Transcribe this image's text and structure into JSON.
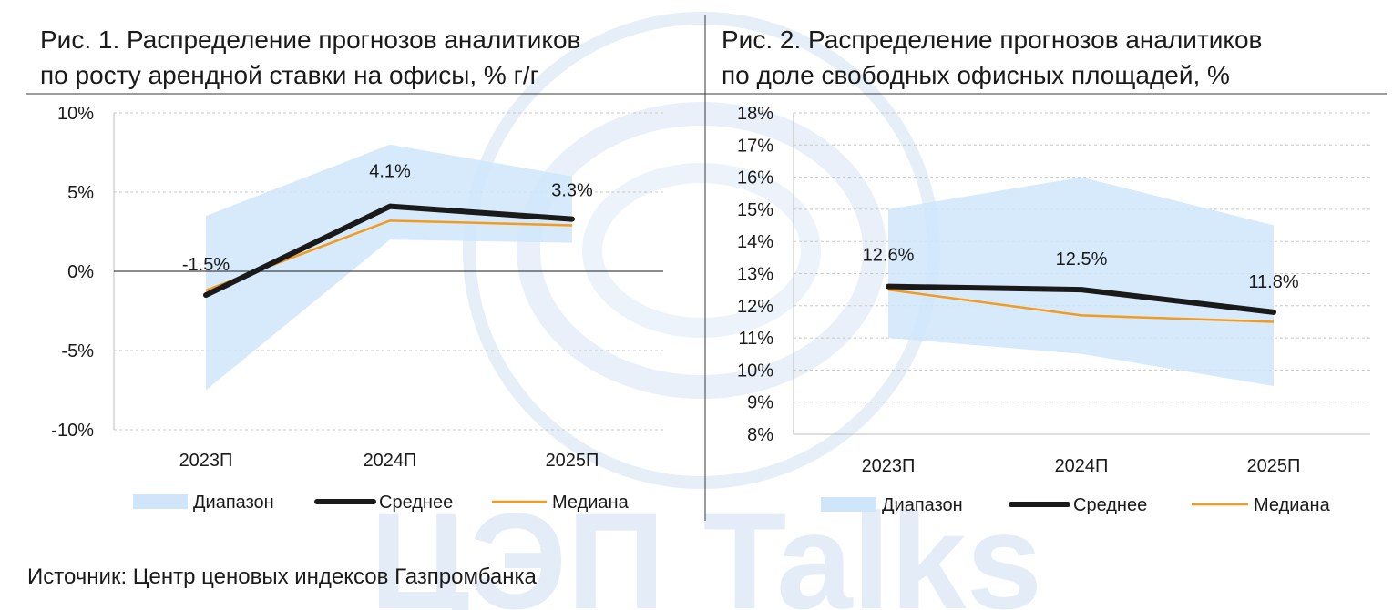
{
  "figures": [
    {
      "title_line1": "Рис. 1.  Распределение прогнозов аналитиков",
      "title_line2": "по росту арендной ставки на офисы, % г/г"
    },
    {
      "title_line1": "Рис. 2.  Распределение прогнозов аналитиков",
      "title_line2": "по доле свободных офисных площадей, %"
    }
  ],
  "source": "Источник: Центр ценовых индексов Газпромбанка",
  "watermark": "ЦЭП Talks",
  "colors": {
    "range": "#cfe6fa",
    "mean": "#1a1a1a",
    "median": "#f39a20",
    "grid": "#c8c8c8",
    "watermark": "#e3ecf7"
  },
  "chart_data": [
    {
      "type": "area",
      "categories": [
        "2023П",
        "2024П",
        "2025П"
      ],
      "ylim": [
        -10,
        10
      ],
      "yticks": [
        10,
        5,
        0,
        -5,
        -10
      ],
      "ytick_labels": [
        "10%",
        "5%",
        "0%",
        "-5%",
        "-10%"
      ],
      "grid": true,
      "legend_position": "bottom",
      "series": [
        {
          "name": "Диапазон",
          "type": "range",
          "low": [
            -7.5,
            2.0,
            1.8
          ],
          "high": [
            3.5,
            8.0,
            6.0
          ]
        },
        {
          "name": "Среднее",
          "type": "line",
          "values": [
            -1.5,
            4.1,
            3.3
          ]
        },
        {
          "name": "Медиана",
          "type": "line",
          "values": [
            -1.2,
            3.2,
            2.9
          ]
        }
      ],
      "data_labels": [
        "-1.5%",
        "4.1%",
        "3.3%"
      ]
    },
    {
      "type": "area",
      "categories": [
        "2023П",
        "2024П",
        "2025П"
      ],
      "ylim": [
        8,
        18
      ],
      "yticks": [
        18,
        17,
        16,
        15,
        14,
        13,
        12,
        11,
        10,
        9,
        8
      ],
      "ytick_labels": [
        "18%",
        "17%",
        "16%",
        "15%",
        "14%",
        "13%",
        "12%",
        "11%",
        "10%",
        "9%",
        "8%"
      ],
      "grid": true,
      "legend_position": "bottom",
      "series": [
        {
          "name": "Диапазон",
          "type": "range",
          "low": [
            11.0,
            10.5,
            9.5
          ],
          "high": [
            15.0,
            16.0,
            14.5
          ]
        },
        {
          "name": "Среднее",
          "type": "line",
          "values": [
            12.6,
            12.5,
            11.8
          ]
        },
        {
          "name": "Медиана",
          "type": "line",
          "values": [
            12.5,
            11.7,
            11.5
          ]
        }
      ],
      "data_labels": [
        "12.6%",
        "12.5%",
        "11.8%"
      ]
    }
  ]
}
